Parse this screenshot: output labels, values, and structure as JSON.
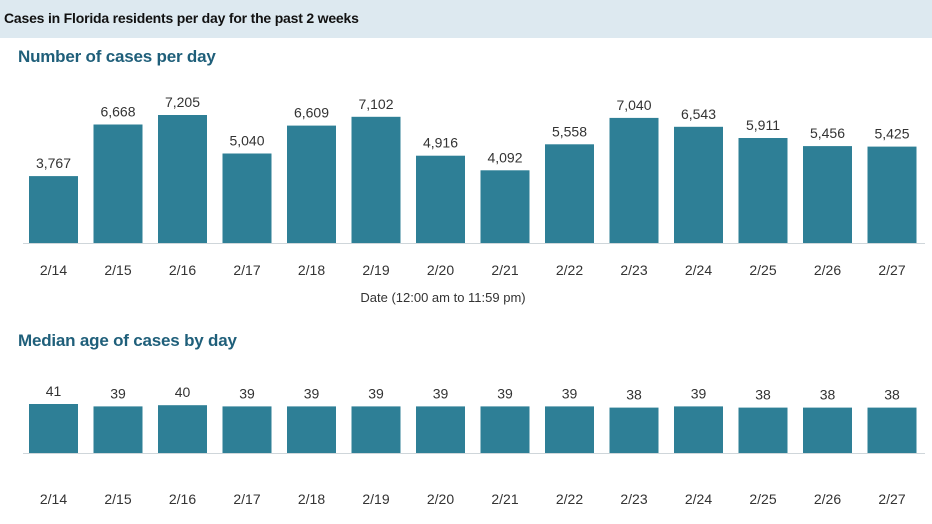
{
  "header": {
    "title": "Cases in Florida residents per day for the past 2 weeks"
  },
  "colors": {
    "bar": "#2e7f96",
    "header_bg": "#dde9f0",
    "section_title": "#1f5f7a"
  },
  "chart_data": [
    {
      "type": "bar",
      "title": "Number of cases per day",
      "xlabel": "Date (12:00 am to 11:59 pm)",
      "ylabel": "",
      "categories": [
        "2/14",
        "2/15",
        "2/16",
        "2/17",
        "2/18",
        "2/19",
        "2/20",
        "2/21",
        "2/22",
        "2/23",
        "2/24",
        "2/25",
        "2/26",
        "2/27"
      ],
      "values": [
        3767,
        6668,
        7205,
        5040,
        6609,
        7102,
        4916,
        4092,
        5558,
        7040,
        6543,
        5911,
        5456,
        5425
      ],
      "value_labels": [
        "3,767",
        "6,668",
        "7,205",
        "5,040",
        "6,609",
        "7,102",
        "4,916",
        "4,092",
        "5,558",
        "7,040",
        "6,543",
        "5,911",
        "5,456",
        "5,425"
      ],
      "ylim": [
        0,
        7500
      ],
      "grid": false,
      "legend": "none"
    },
    {
      "type": "bar",
      "title": "Median age of cases by day",
      "xlabel": "",
      "ylabel": "",
      "categories": [
        "2/14",
        "2/15",
        "2/16",
        "2/17",
        "2/18",
        "2/19",
        "2/20",
        "2/21",
        "2/22",
        "2/23",
        "2/24",
        "2/25",
        "2/26",
        "2/27"
      ],
      "values": [
        41,
        39,
        40,
        39,
        39,
        39,
        39,
        39,
        39,
        38,
        39,
        38,
        38,
        38
      ],
      "value_labels": [
        "41",
        "39",
        "40",
        "39",
        "39",
        "39",
        "39",
        "39",
        "39",
        "38",
        "39",
        "38",
        "38",
        "38"
      ],
      "ylim": [
        0,
        45
      ],
      "grid": false,
      "legend": "none"
    }
  ]
}
